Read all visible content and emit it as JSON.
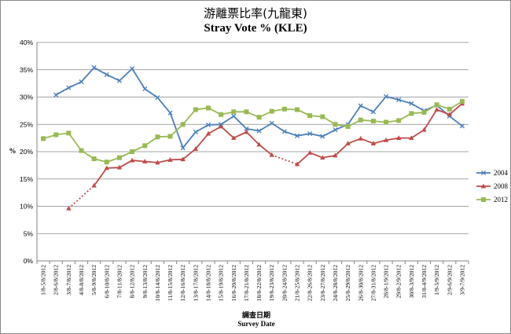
{
  "chart_data": {
    "type": "line",
    "title": "游離票比率(九龍東)",
    "subtitle": "Stray Vote % (KLE)",
    "xlabel_cn": "調查日期",
    "xlabel_en": "Survey Date",
    "ylabel": "%",
    "ylim": [
      0,
      40
    ],
    "yticks": [
      "0%",
      "5%",
      "10%",
      "15%",
      "20%",
      "25%",
      "30%",
      "35%",
      "40%"
    ],
    "grid": true,
    "legend": "right",
    "categories": [
      "1/8-5/8/2012",
      "2/8-6/8/2012",
      "3/8-7/8/2012",
      "4/8-8/8/2012",
      "5/8-9/8/2012",
      "6/8-10/8/2012",
      "7/8-11/8/2012",
      "8/8-12/8/2012",
      "9/8-13/8/2012",
      "10/8-14/8/2012",
      "11/8-15/8/2012",
      "12/8-16/8/2012",
      "13/8-17/8/2012",
      "14/8-18/8/2012",
      "15/8-19/8/2012",
      "16/8-20/8/2012",
      "17/8-21/8/2012",
      "18/8-22/8/2012",
      "19/8-23/8/2012",
      "20/8-24/8/2012",
      "21/8-25/8/2012",
      "22/8-26/8/2012",
      "23/8-27/8/2012",
      "24/8-28/8/2012",
      "25/8-29/8/2012",
      "26/8-30/8/2012",
      "27/8-31/8/2012",
      "28/8-1/9/2012",
      "29/8-2/9/2012",
      "30/8-3/9/2012",
      "31/8-4/9/2012",
      "1/9-5/9/2012",
      "2/9-6/9/2012",
      "3/9-7/9/2012"
    ],
    "series": [
      {
        "name": "2004",
        "color": "#4a7ebb",
        "marker": "x",
        "values": [
          null,
          30.4,
          31.7,
          32.8,
          35.4,
          34.1,
          33.0,
          35.2,
          31.5,
          29.9,
          27.1,
          20.7,
          23.6,
          24.9,
          25.0,
          26.5,
          24.2,
          23.8,
          25.2,
          23.7,
          22.9,
          23.3,
          22.8,
          24.0,
          25.0,
          28.4,
          27.3,
          30.1,
          29.5,
          28.8,
          27.5,
          28.5,
          26.5,
          24.7
        ]
      },
      {
        "name": "2008",
        "color": "#be4b48",
        "marker": "triangle",
        "values": [
          null,
          null,
          9.6,
          null,
          13.8,
          17.0,
          17.1,
          18.4,
          18.2,
          18.0,
          18.5,
          18.6,
          20.5,
          23.3,
          24.6,
          22.5,
          23.6,
          21.3,
          19.4,
          null,
          17.7,
          19.8,
          18.9,
          19.3,
          21.5,
          22.4,
          21.5,
          22.1,
          22.5,
          22.5,
          24.0,
          27.7,
          26.8,
          28.8
        ]
      },
      {
        "name": "2012",
        "color": "#98b954",
        "marker": "square",
        "values": [
          22.4,
          23.1,
          23.4,
          20.2,
          18.7,
          18.1,
          18.9,
          20.0,
          21.1,
          22.7,
          22.8,
          25.0,
          27.7,
          28.0,
          26.8,
          27.3,
          27.3,
          26.3,
          27.4,
          27.8,
          27.7,
          26.6,
          26.4,
          25.0,
          24.6,
          25.8,
          25.6,
          25.4,
          25.7,
          27.0,
          27.2,
          28.6,
          27.8,
          29.2
        ]
      }
    ],
    "dotted_gaps": [
      {
        "series": "2008",
        "from": 2,
        "to": 4
      },
      {
        "series": "2008",
        "from": 18,
        "to": 20
      }
    ]
  }
}
